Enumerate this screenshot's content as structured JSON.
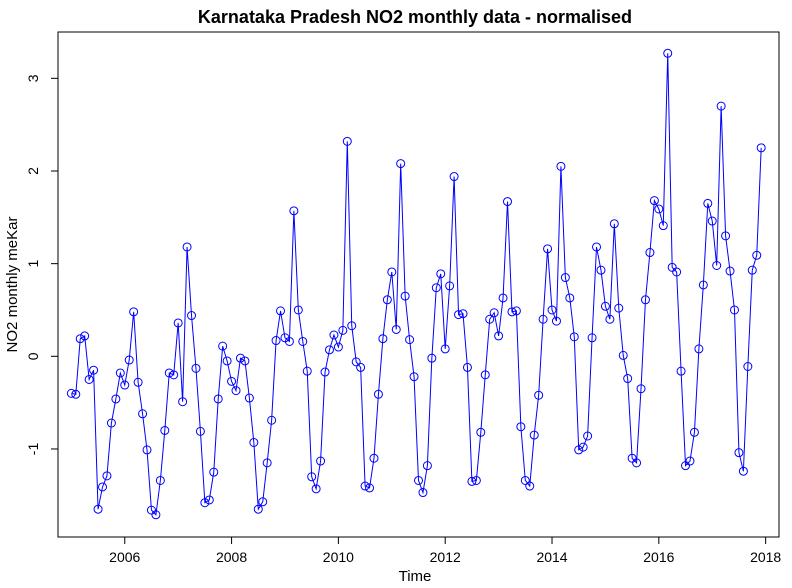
{
  "chart_data": {
    "type": "line",
    "title": "Karnataka Pradesh NO2 monthly data - normalised",
    "xlabel": "Time",
    "ylabel": "NO2 monthly meKar",
    "xlim": [
      2004.75,
      2018.25
    ],
    "ylim": [
      -1.95,
      3.5
    ],
    "x_ticks": [
      2006,
      2008,
      2010,
      2012,
      2014,
      2016,
      2018
    ],
    "y_ticks": [
      -1,
      0,
      1,
      2,
      3
    ],
    "x_tick_labels": [
      "2006",
      "2008",
      "2010",
      "2012",
      "2014",
      "2016",
      "2018"
    ],
    "y_tick_labels": [
      "-1",
      "0",
      "1",
      "2",
      "3"
    ],
    "grid": false,
    "x_start": 2005.0,
    "x_step": 0.083333,
    "series": [
      {
        "color": "#0000ff",
        "marker": "open-circle",
        "values": [
          -0.4,
          -0.41,
          0.19,
          0.22,
          -0.25,
          -0.15,
          -1.65,
          -1.41,
          -1.29,
          -0.72,
          -0.46,
          -0.18,
          -0.31,
          -0.04,
          0.48,
          -0.28,
          -0.62,
          -1.01,
          -1.66,
          -1.71,
          -1.34,
          -0.8,
          -0.18,
          -0.2,
          0.36,
          -0.49,
          1.18,
          0.44,
          -0.13,
          -0.81,
          -1.58,
          -1.55,
          -1.25,
          -0.46,
          0.11,
          -0.05,
          -0.27,
          -0.37,
          -0.02,
          -0.05,
          -0.45,
          -0.93,
          -1.65,
          -1.57,
          -1.15,
          -0.69,
          0.17,
          0.49,
          0.2,
          0.16,
          1.57,
          0.5,
          0.16,
          -0.16,
          -1.3,
          -1.43,
          -1.13,
          -0.17,
          0.07,
          0.23,
          0.1,
          0.28,
          2.32,
          0.33,
          -0.06,
          -0.12,
          -1.4,
          -1.42,
          -1.1,
          -0.41,
          0.19,
          0.61,
          0.91,
          0.29,
          2.08,
          0.65,
          0.18,
          -0.22,
          -1.34,
          -1.47,
          -1.18,
          -0.02,
          0.74,
          0.89,
          0.08,
          0.76,
          1.94,
          0.45,
          0.46,
          -0.12,
          -1.35,
          -1.34,
          -0.82,
          -0.2,
          0.4,
          0.47,
          0.22,
          0.63,
          1.67,
          0.48,
          0.49,
          -0.76,
          -1.34,
          -1.4,
          -0.85,
          -0.42,
          0.4,
          1.16,
          0.5,
          0.38,
          2.05,
          0.85,
          0.63,
          0.21,
          -1.01,
          -0.98,
          -0.86,
          0.2,
          1.18,
          0.93,
          0.54,
          0.4,
          1.43,
          0.52,
          0.01,
          -0.24,
          -1.1,
          -1.15,
          -0.35,
          0.61,
          1.12,
          1.68,
          1.59,
          1.41,
          3.27,
          0.96,
          0.91,
          -0.16,
          -1.18,
          -1.13,
          -0.82,
          0.08,
          0.77,
          1.65,
          1.46,
          0.98,
          2.7,
          1.3,
          0.92,
          0.5,
          -1.04,
          -1.24,
          -0.11,
          0.93,
          1.09,
          2.25
        ]
      }
    ]
  }
}
